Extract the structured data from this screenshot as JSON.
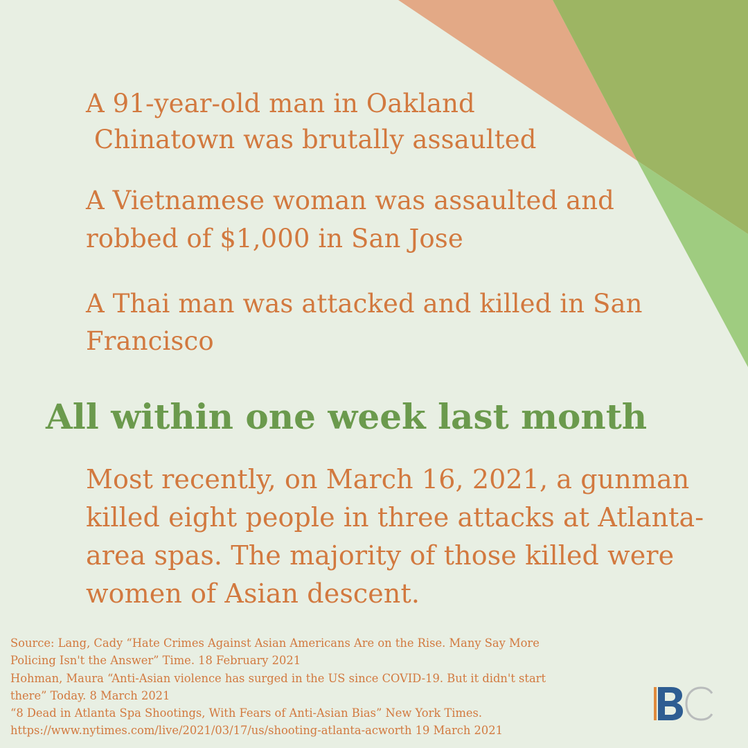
{
  "palette": {
    "background": "#e8efe3",
    "body_text": "#d2793f",
    "headline_text": "#6b9a4d",
    "peach_shape": "#e3a986",
    "olive_shape": "#9db563",
    "green_shape": "#9fcc80",
    "logo_blue": "#2e5d92",
    "logo_orange": "#e08a3c",
    "logo_gray": "#b9bcbc"
  },
  "incidents": [
    {
      "lines": [
        "A 91-year-old man in Oakland",
        " Chinatown was brutally assaulted"
      ]
    },
    {
      "lines": [
        "A Vietnamese woman was assaulted and",
        "robbed of $1,000 in San Jose"
      ]
    },
    {
      "lines": [
        "A Thai man was attacked and killed in San",
        "Francisco"
      ]
    }
  ],
  "headline": "All within one week last month",
  "summary_lines": [
    "Most recently, on March 16, 2021, a gunman",
    "killed eight people in three attacks at Atlanta-",
    "area spas. The majority of those killed were",
    "women of Asian descent."
  ],
  "sources": [
    "Source: Lang, Cady “Hate Crimes Against Asian Americans Are on the Rise. Many Say More",
    "Policing Isn't the Answer” Time. 18 February 2021",
    "Hohman, Maura “Anti-Asian violence has surged in the US since COVID-19. But it didn't start",
    "there” Today. 8 March 2021",
    "“8 Dead in Atlanta Spa Shootings, With Fears of Anti-Asian Bias” New York Times.",
    "https://www.nytimes.com/live/2021/03/17/us/shooting-atlanta-acworth 19 March 2021"
  ],
  "logo": {
    "icon": "bc-logo-icon",
    "letters": "BC"
  }
}
